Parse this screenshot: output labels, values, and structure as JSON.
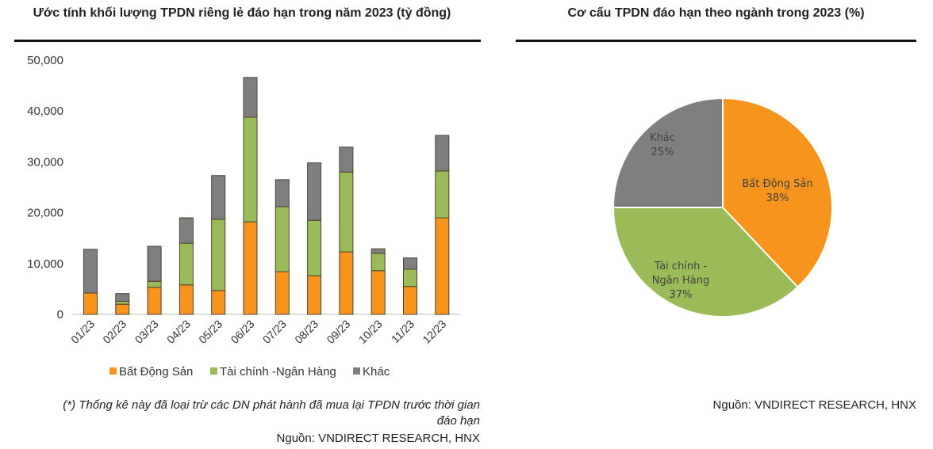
{
  "chart_data": [
    {
      "type": "bar",
      "stacked": true,
      "title": "Ước tính khối lượng TPDN riêng lẻ đáo hạn trong năm 2023 (tỷ đồng)",
      "categories": [
        "01/23",
        "02/23",
        "03/23",
        "04/23",
        "05/23",
        "06/23",
        "07/23",
        "08/23",
        "09/23",
        "10/23",
        "11/23",
        "12/23"
      ],
      "series": [
        {
          "name": "Bất Động Sản",
          "color": "#F7941D",
          "values": [
            4200,
            2000,
            5300,
            5800,
            4700,
            18200,
            8400,
            7600,
            12300,
            8600,
            5500,
            19000
          ]
        },
        {
          "name": "Tài chính -Ngân Hàng",
          "color": "#9BBB59",
          "values": [
            0,
            600,
            1200,
            8200,
            14000,
            20600,
            12800,
            10900,
            15700,
            3400,
            3400,
            9200
          ]
        },
        {
          "name": "Khác",
          "color": "#7F7F7F",
          "values": [
            8600,
            1500,
            6900,
            5000,
            8600,
            7800,
            5300,
            11300,
            4900,
            900,
            2200,
            7000
          ]
        }
      ],
      "ylim": [
        0,
        50000
      ],
      "yticks": [
        "0",
        "10,000",
        "20,000",
        "30,000",
        "40,000",
        "50,000"
      ],
      "grid": false,
      "legend": "bottom"
    },
    {
      "type": "pie",
      "title": "Cơ cấu TPDN đáo hạn theo ngành trong 2023 (%)",
      "slices": [
        {
          "label": "Bất Động Sản",
          "value": 38,
          "text": "38%",
          "color": "#F7941D"
        },
        {
          "label": "Tài chính - Ngân Hàng",
          "value": 37,
          "text": "37%",
          "color": "#9BBB59"
        },
        {
          "label": "Khác",
          "value": 25,
          "text": "25%",
          "color": "#7F7F7F"
        }
      ]
    }
  ],
  "notes": {
    "footnote_line1": "(*) Thống kê này đã loại trừ các DN phát hành đã mua lại TPDN trước thời gian",
    "footnote_line2": "đáo hạn",
    "source_left": "Nguồn: VNDIRECT RESEARCH, HNX",
    "source_right": "Nguồn: VNDIRECT RESEARCH, HNX"
  }
}
